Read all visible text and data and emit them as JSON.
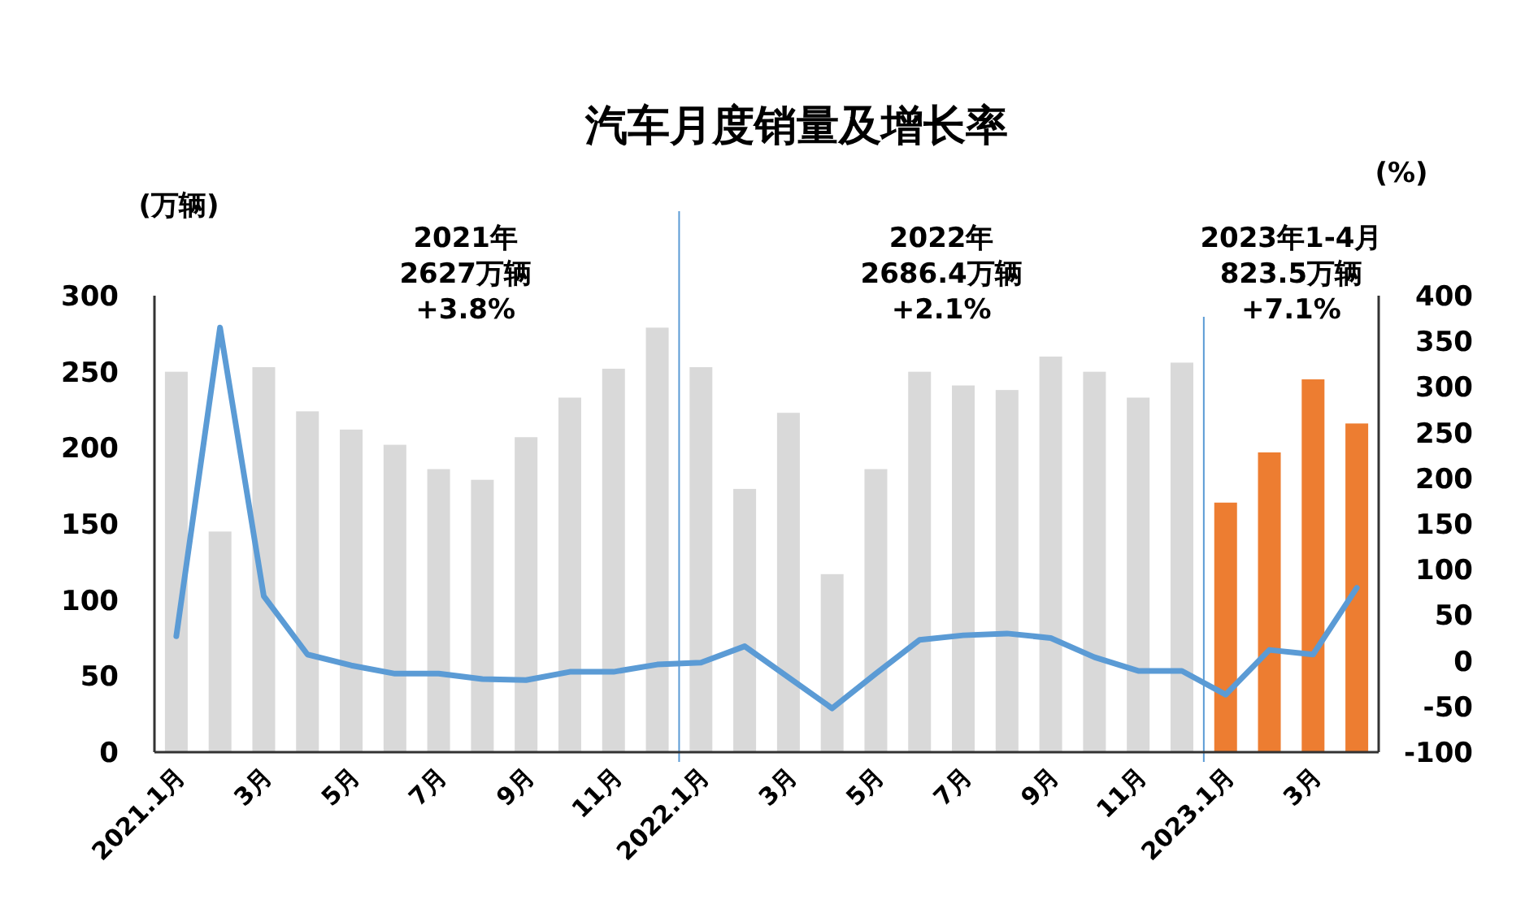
{
  "chart_data": {
    "type": "bar",
    "title": "汽车月度销量及增长率",
    "ylabel": "(万辆)",
    "y2label": "(%)",
    "categories": [
      "2021.1月",
      null,
      "3月",
      null,
      "5月",
      null,
      "7月",
      null,
      "9月",
      null,
      "11月",
      null,
      "2022.1月",
      null,
      "3月",
      null,
      "5月",
      null,
      "7月",
      null,
      "9月",
      null,
      "11月",
      null,
      "2023.1月",
      null,
      "3月",
      null
    ],
    "series": [
      {
        "colors": [
          "#d9d9d9",
          "#d9d9d9",
          "#d9d9d9",
          "#d9d9d9",
          "#d9d9d9",
          "#d9d9d9",
          "#d9d9d9",
          "#d9d9d9",
          "#d9d9d9",
          "#d9d9d9",
          "#d9d9d9",
          "#d9d9d9",
          "#d9d9d9",
          "#d9d9d9",
          "#d9d9d9",
          "#d9d9d9",
          "#d9d9d9",
          "#d9d9d9",
          "#d9d9d9",
          "#d9d9d9",
          "#d9d9d9",
          "#d9d9d9",
          "#d9d9d9",
          "#d9d9d9",
          "#ed7d31",
          "#ed7d31",
          "#ed7d31",
          "#ed7d31"
        ],
        "values": [
          250,
          145,
          253,
          224,
          212,
          202,
          186,
          179,
          207,
          233,
          252,
          279,
          253,
          173,
          223,
          117,
          186,
          250,
          241,
          238,
          260,
          250,
          233,
          256,
          164,
          197,
          245,
          216
        ]
      },
      {
        "type": "line",
        "axis": "y2",
        "color": "#5b9bd5",
        "values": [
          27,
          365,
          71,
          7,
          -5,
          -14,
          -14,
          -20,
          -21,
          -12,
          -12,
          -4,
          -2,
          16,
          -18,
          -52,
          -14,
          23,
          28,
          30,
          25,
          4,
          -11,
          -11,
          -37,
          12,
          7,
          80
        ]
      }
    ],
    "ylim": [
      0,
      300
    ],
    "yticks": [
      0,
      50,
      100,
      150,
      200,
      250,
      300
    ],
    "y2lim": [
      -100,
      400
    ],
    "y2ticks": [
      -100,
      -50,
      0,
      50,
      100,
      150,
      200,
      250,
      300,
      350,
      400
    ],
    "annotations": [
      "2021年\n2627万辆\n+3.8%",
      "2022年\n2686.4万辆\n+2.1%",
      "2023年1-4月\n823.5万辆\n+7.1%"
    ],
    "grid": false
  }
}
